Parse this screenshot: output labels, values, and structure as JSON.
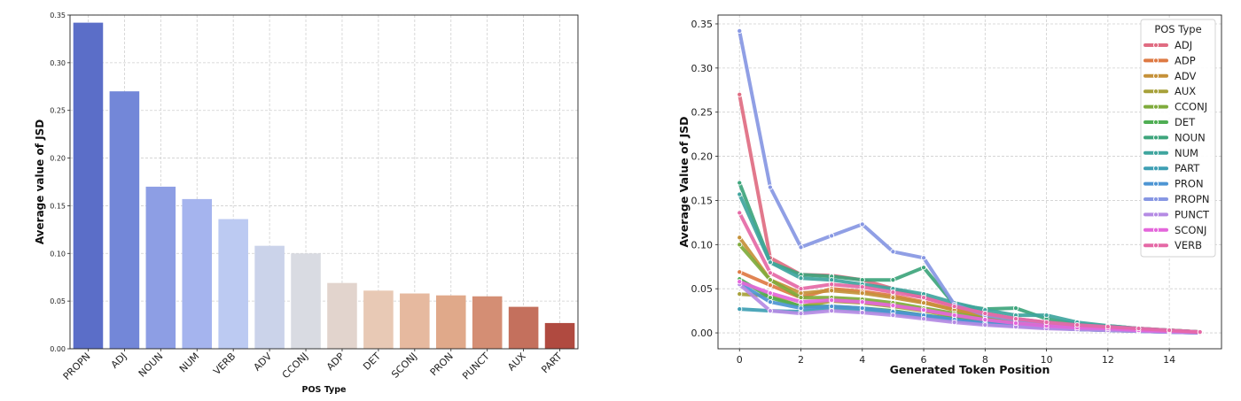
{
  "chart_data": [
    {
      "type": "bar",
      "xlabel": "POS Type",
      "ylabel": "Average value of JSD",
      "ylim": [
        0,
        0.35
      ],
      "yticks": [
        "0.00",
        "0.05",
        "0.10",
        "0.15",
        "0.20",
        "0.25",
        "0.30",
        "0.35"
      ],
      "grid": true,
      "categories": [
        "PROPN",
        "ADJ",
        "NOUN",
        "NUM",
        "VERB",
        "ADV",
        "CCONJ",
        "ADP",
        "DET",
        "SCONJ",
        "PRON",
        "PUNCT",
        "AUX",
        "PART"
      ],
      "values": [
        0.342,
        0.27,
        0.17,
        0.157,
        0.136,
        0.108,
        0.1,
        0.069,
        0.061,
        0.058,
        0.056,
        0.055,
        0.044,
        0.027
      ],
      "colors": [
        "#5b6ec8",
        "#7387d8",
        "#8d9ee4",
        "#a5b4ee",
        "#bccaf2",
        "#cbd3ea",
        "#d9dbe2",
        "#e2d4cd",
        "#e8c9b5",
        "#e6b99f",
        "#e0a98a",
        "#d48e74",
        "#c4705d",
        "#b04a40"
      ]
    },
    {
      "type": "line",
      "xlabel": "Generated Token Position",
      "ylabel": "Average Value of JSD",
      "xlim": [
        -0.7,
        15.7
      ],
      "ylim": [
        -0.018,
        0.36
      ],
      "xticks": [
        "0",
        "2",
        "4",
        "6",
        "8",
        "10",
        "12",
        "14"
      ],
      "yticks": [
        "0.00",
        "0.05",
        "0.10",
        "0.15",
        "0.20",
        "0.25",
        "0.30",
        "0.35"
      ],
      "grid": true,
      "legend": {
        "title": "POS Type",
        "placement": "top-right"
      },
      "x": [
        0,
        1,
        2,
        3,
        4,
        5,
        6,
        7,
        8,
        9,
        10,
        11,
        12,
        13,
        14,
        15
      ],
      "series": [
        {
          "name": "ADJ",
          "color": "#e06c82",
          "values": [
            0.27,
            0.085,
            0.066,
            0.065,
            0.06,
            0.05,
            0.04,
            0.03,
            0.022,
            0.016,
            0.012,
            0.009,
            0.007,
            0.005,
            0.003,
            0.001
          ]
        },
        {
          "name": "ADP",
          "color": "#de7a44",
          "values": [
            0.069,
            0.054,
            0.04,
            0.05,
            0.047,
            0.042,
            0.035,
            0.026,
            0.018,
            0.014,
            0.011,
            0.008,
            0.006,
            0.004,
            0.003,
            0.001
          ]
        },
        {
          "name": "ADV",
          "color": "#c59139",
          "values": [
            0.108,
            0.06,
            0.045,
            0.048,
            0.045,
            0.04,
            0.034,
            0.026,
            0.019,
            0.015,
            0.011,
            0.008,
            0.006,
            0.004,
            0.003,
            0.001
          ]
        },
        {
          "name": "AUX",
          "color": "#a7a13a",
          "values": [
            0.044,
            0.042,
            0.03,
            0.036,
            0.034,
            0.03,
            0.025,
            0.019,
            0.014,
            0.011,
            0.008,
            0.006,
            0.005,
            0.004,
            0.002,
            0.001
          ]
        },
        {
          "name": "CCONJ",
          "color": "#7fab3c",
          "values": [
            0.1,
            0.06,
            0.04,
            0.04,
            0.038,
            0.034,
            0.028,
            0.022,
            0.016,
            0.012,
            0.009,
            0.007,
            0.005,
            0.004,
            0.002,
            0.001
          ]
        },
        {
          "name": "DET",
          "color": "#4fae53",
          "values": [
            0.061,
            0.04,
            0.03,
            0.03,
            0.028,
            0.025,
            0.02,
            0.016,
            0.012,
            0.009,
            0.007,
            0.005,
            0.004,
            0.003,
            0.002,
            0.001
          ]
        },
        {
          "name": "NOUN",
          "color": "#3ea57c",
          "values": [
            0.17,
            0.08,
            0.066,
            0.064,
            0.06,
            0.06,
            0.074,
            0.032,
            0.027,
            0.028,
            0.016,
            0.01,
            0.008,
            0.005,
            0.003,
            0.001
          ]
        },
        {
          "name": "NUM",
          "color": "#3fa59e",
          "values": [
            0.157,
            0.08,
            0.062,
            0.06,
            0.055,
            0.05,
            0.044,
            0.034,
            0.026,
            0.02,
            0.02,
            0.012,
            0.008,
            0.005,
            0.003,
            0.001
          ]
        },
        {
          "name": "PART",
          "color": "#3f9fb4",
          "values": [
            0.027,
            0.025,
            0.024,
            0.028,
            0.025,
            0.022,
            0.018,
            0.014,
            0.01,
            0.008,
            0.006,
            0.004,
            0.003,
            0.002,
            0.001,
            0.0
          ]
        },
        {
          "name": "PRON",
          "color": "#4d95d3",
          "values": [
            0.056,
            0.035,
            0.028,
            0.03,
            0.028,
            0.024,
            0.02,
            0.015,
            0.011,
            0.008,
            0.006,
            0.004,
            0.003,
            0.002,
            0.001,
            0.0
          ]
        },
        {
          "name": "PROPN",
          "color": "#8797e3",
          "values": [
            0.342,
            0.165,
            0.097,
            0.11,
            0.123,
            0.092,
            0.085,
            0.032,
            0.02,
            0.015,
            0.011,
            0.008,
            0.006,
            0.004,
            0.002,
            0.001
          ]
        },
        {
          "name": "PUNCT",
          "color": "#b58be4",
          "values": [
            0.055,
            0.025,
            0.022,
            0.025,
            0.023,
            0.02,
            0.016,
            0.012,
            0.009,
            0.007,
            0.005,
            0.004,
            0.003,
            0.002,
            0.001,
            0.0
          ]
        },
        {
          "name": "SCONJ",
          "color": "#e466db",
          "values": [
            0.058,
            0.045,
            0.035,
            0.037,
            0.035,
            0.031,
            0.026,
            0.02,
            0.015,
            0.011,
            0.008,
            0.006,
            0.005,
            0.003,
            0.002,
            0.001
          ]
        },
        {
          "name": "VERB",
          "color": "#e569a6",
          "values": [
            0.136,
            0.068,
            0.05,
            0.055,
            0.052,
            0.046,
            0.04,
            0.03,
            0.022,
            0.016,
            0.012,
            0.009,
            0.007,
            0.005,
            0.003,
            0.001
          ]
        }
      ]
    }
  ]
}
